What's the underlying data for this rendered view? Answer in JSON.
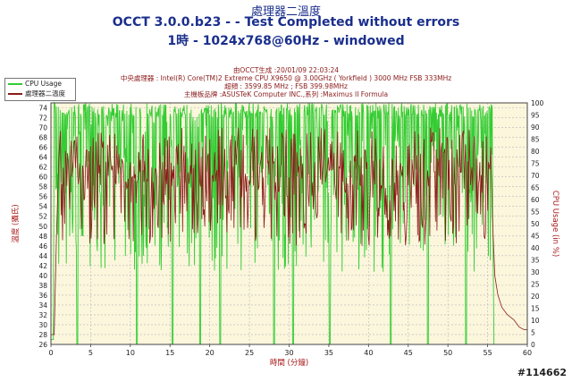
{
  "header": {
    "title_line1": "處理器二溫度",
    "title_line2": "OCCT 3.0.0.b23 -  - Test Completed without errors",
    "title_line3": "1時 - 1024x768@60Hz - windowed"
  },
  "info": {
    "generated": "由OCCT生成 :20/01/09 22:03:24",
    "cpu": "中央處理器 : Intel(R) Core(TM)2 Extreme CPU X9650 @ 3.00GHz ( Yorkfield ) 3000 MHz FSB 333MHz",
    "clock": "超頻 : 3599.85 MHz ; FSB 399.98MHz",
    "board": "主機板品牌 :ASUSTeK Computer INC.,系列 :Maximus II Formula"
  },
  "watermark": "#114662",
  "chart_data": {
    "type": "line",
    "xlabel": "時間 (分鐘)",
    "ylabel_left": "溫度 (攝氏)",
    "ylabel_right": "CPU Usage (in %)",
    "xlim": [
      0,
      60
    ],
    "ylim_left": [
      26,
      75
    ],
    "ylim_right": [
      0,
      100
    ],
    "x_ticks": [
      0,
      5,
      10,
      15,
      20,
      25,
      30,
      35,
      40,
      45,
      50,
      55,
      60
    ],
    "y_ticks_left": [
      26,
      28,
      30,
      32,
      34,
      36,
      38,
      40,
      42,
      44,
      46,
      48,
      50,
      52,
      54,
      56,
      58,
      60,
      62,
      64,
      66,
      68,
      70,
      72,
      74
    ],
    "y_ticks_right": [
      0,
      5,
      10,
      15,
      20,
      25,
      30,
      35,
      40,
      45,
      50,
      55,
      60,
      65,
      70,
      75,
      80,
      85,
      90,
      95,
      100
    ],
    "grid": true,
    "legend_position": "top-left",
    "series": [
      {
        "name": "CPU Usage",
        "color": "#33cc33",
        "axis": "right",
        "description_points": {
          "x": [
            0,
            0.3,
            0.6,
            1.0,
            3.0,
            3.3,
            3.6,
            10.5,
            10.8,
            11.1,
            15.0,
            15.3,
            15.6,
            18.5,
            18.8,
            19.1,
            21.0,
            21.3,
            21.6,
            27.8,
            28.1,
            28.4,
            30.2,
            30.5,
            30.8,
            34.8,
            35.1,
            35.4,
            42.5,
            42.8,
            43.1,
            47.2,
            47.5,
            47.8,
            52.0,
            52.3,
            52.6,
            55.5,
            55.8,
            56.1,
            60
          ],
          "y": [
            2,
            2,
            100,
            92,
            94,
            0,
            96,
            95,
            0,
            97,
            96,
            0,
            98,
            96,
            0,
            98,
            95,
            0,
            97,
            96,
            0,
            98,
            95,
            0,
            97,
            96,
            0,
            98,
            96,
            0,
            97,
            95,
            0,
            98,
            96,
            0,
            97,
            96,
            0,
            0,
            0
          ]
        }
      },
      {
        "name": "處理器二溫度",
        "color": "#8b1a1a",
        "axis": "left",
        "description_points": {
          "x": [
            0,
            0.4,
            1.0,
            2.0,
            5,
            10,
            15,
            20,
            25,
            30,
            35,
            40,
            45,
            50,
            54,
            55.3,
            55.6,
            56.0,
            56.5,
            57.5,
            58.5,
            59.5,
            60
          ],
          "y": [
            28,
            28,
            64,
            62,
            62,
            63,
            62,
            63,
            62,
            63,
            62,
            63,
            62,
            63,
            62,
            66,
            50,
            38,
            34,
            32,
            30,
            29,
            29
          ]
        }
      }
    ]
  }
}
